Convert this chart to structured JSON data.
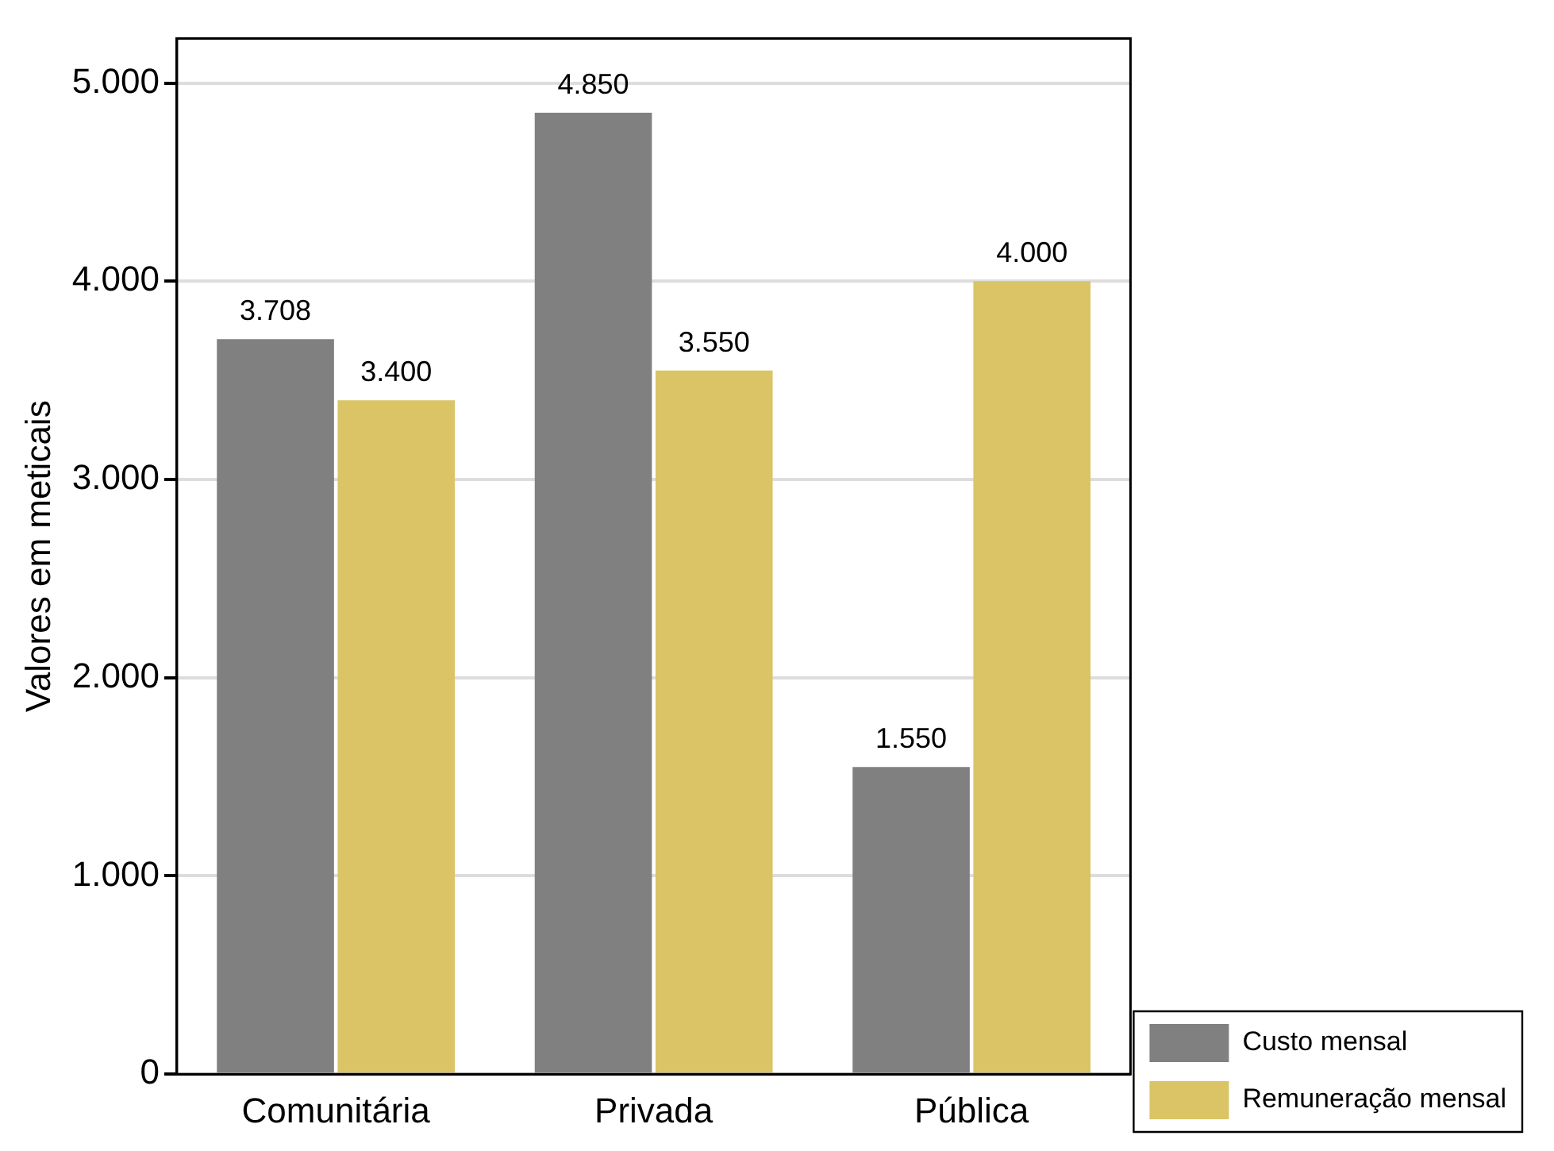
{
  "chart_data": {
    "type": "bar",
    "ylabel": "Valores em meticais",
    "categories": [
      "Comunitária",
      "Privada",
      "Pública"
    ],
    "series": [
      {
        "name": "Custo mensal",
        "color": "#808080",
        "values": [
          3708,
          4850,
          1550
        ],
        "value_labels": [
          "3.708",
          "4.850",
          "1.550"
        ]
      },
      {
        "name": "Remuneração mensal",
        "color": "#dac466",
        "values": [
          3400,
          3550,
          4000
        ],
        "value_labels": [
          "3.400",
          "3.550",
          "4.000"
        ]
      }
    ],
    "ylim": [
      0,
      5225
    ],
    "yticks": [
      {
        "value": 0,
        "label": "0"
      },
      {
        "value": 1000,
        "label": "1.000"
      },
      {
        "value": 2000,
        "label": "2.000"
      },
      {
        "value": 3000,
        "label": "3.000"
      },
      {
        "value": 4000,
        "label": "4.000"
      },
      {
        "value": 5000,
        "label": "5.000"
      }
    ],
    "grid": "y",
    "legend": "bottom right"
  }
}
